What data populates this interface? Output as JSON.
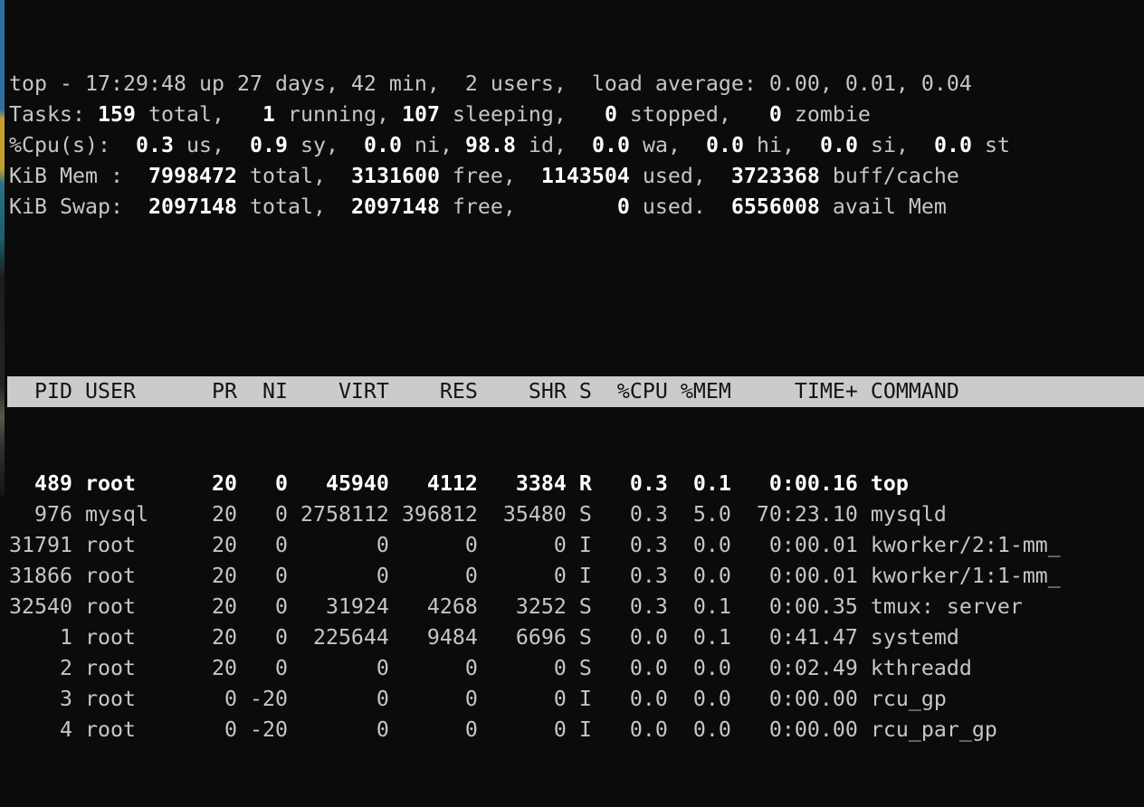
{
  "terminal": {
    "colors": {
      "background": "#0b0b0b",
      "text": "#c6c6c6",
      "bold_text": "#ffffff",
      "header_bg": "#cbcbcb",
      "header_text": "#141414"
    },
    "summary_lines": [
      {
        "name": "uptime-line",
        "segments": [
          {
            "t": "top - 17:29:48 up 27 days, 42 min,  2 users,  load average: 0.00, 0.01, 0.04",
            "b": false
          }
        ]
      },
      {
        "name": "tasks-line",
        "segments": [
          {
            "t": "Tasks: ",
            "b": false
          },
          {
            "t": "159",
            "b": true
          },
          {
            "t": " total,   ",
            "b": false
          },
          {
            "t": "1",
            "b": true
          },
          {
            "t": " running, ",
            "b": false
          },
          {
            "t": "107",
            "b": true
          },
          {
            "t": " sleeping,   ",
            "b": false
          },
          {
            "t": "0",
            "b": true
          },
          {
            "t": " stopped,   ",
            "b": false
          },
          {
            "t": "0",
            "b": true
          },
          {
            "t": " zombie",
            "b": false
          }
        ]
      },
      {
        "name": "cpu-line",
        "segments": [
          {
            "t": "%Cpu(s):  ",
            "b": false
          },
          {
            "t": "0.3",
            "b": true
          },
          {
            "t": " us,  ",
            "b": false
          },
          {
            "t": "0.9",
            "b": true
          },
          {
            "t": " sy,  ",
            "b": false
          },
          {
            "t": "0.0",
            "b": true
          },
          {
            "t": " ni, ",
            "b": false
          },
          {
            "t": "98.8",
            "b": true
          },
          {
            "t": " id,  ",
            "b": false
          },
          {
            "t": "0.0",
            "b": true
          },
          {
            "t": " wa,  ",
            "b": false
          },
          {
            "t": "0.0",
            "b": true
          },
          {
            "t": " hi,  ",
            "b": false
          },
          {
            "t": "0.0",
            "b": true
          },
          {
            "t": " si,  ",
            "b": false
          },
          {
            "t": "0.0",
            "b": true
          },
          {
            "t": " st",
            "b": false
          }
        ]
      },
      {
        "name": "mem-line",
        "segments": [
          {
            "t": "KiB Mem :  ",
            "b": false
          },
          {
            "t": "7998472",
            "b": true
          },
          {
            "t": " total,  ",
            "b": false
          },
          {
            "t": "3131600",
            "b": true
          },
          {
            "t": " free,  ",
            "b": false
          },
          {
            "t": "1143504",
            "b": true
          },
          {
            "t": " used,  ",
            "b": false
          },
          {
            "t": "3723368",
            "b": true
          },
          {
            "t": " buff/cache",
            "b": false
          }
        ]
      },
      {
        "name": "swap-line",
        "segments": [
          {
            "t": "KiB Swap:  ",
            "b": false
          },
          {
            "t": "2097148",
            "b": true
          },
          {
            "t": " total,  ",
            "b": false
          },
          {
            "t": "2097148",
            "b": true
          },
          {
            "t": " free,        ",
            "b": false
          },
          {
            "t": "0",
            "b": true
          },
          {
            "t": " used.  ",
            "b": false
          },
          {
            "t": "6556008",
            "b": true
          },
          {
            "t": " avail Mem",
            "b": false
          }
        ]
      }
    ],
    "table": {
      "columns": [
        {
          "key": "pid",
          "label": "PID",
          "width": 5,
          "align": "right"
        },
        {
          "key": "user",
          "label": "USER",
          "width": 8,
          "align": "left"
        },
        {
          "key": "pr",
          "label": "PR",
          "width": 3,
          "align": "right"
        },
        {
          "key": "ni",
          "label": "NI",
          "width": 3,
          "align": "right"
        },
        {
          "key": "virt",
          "label": "VIRT",
          "width": 7,
          "align": "right"
        },
        {
          "key": "res",
          "label": "RES",
          "width": 6,
          "align": "right"
        },
        {
          "key": "shr",
          "label": "SHR",
          "width": 6,
          "align": "right"
        },
        {
          "key": "s",
          "label": "S",
          "width": 1,
          "align": "left"
        },
        {
          "key": "cpu",
          "label": "%CPU",
          "width": 5,
          "align": "right"
        },
        {
          "key": "mem",
          "label": "%MEM",
          "width": 4,
          "align": "right"
        },
        {
          "key": "time",
          "label": "TIME+",
          "width": 9,
          "align": "right"
        },
        {
          "key": "command",
          "label": "COMMAND",
          "width": 0,
          "align": "left"
        }
      ],
      "rows": [
        {
          "bold": true,
          "cells": {
            "pid": "489",
            "user": "root",
            "pr": "20",
            "ni": "0",
            "virt": "45940",
            "res": "4112",
            "shr": "3384",
            "s": "R",
            "cpu": "0.3",
            "mem": "0.1",
            "time": "0:00.16",
            "command": "top"
          }
        },
        {
          "bold": false,
          "cells": {
            "pid": "976",
            "user": "mysql",
            "pr": "20",
            "ni": "0",
            "virt": "2758112",
            "res": "396812",
            "shr": "35480",
            "s": "S",
            "cpu": "0.3",
            "mem": "5.0",
            "time": "70:23.10",
            "command": "mysqld"
          }
        },
        {
          "bold": false,
          "cells": {
            "pid": "31791",
            "user": "root",
            "pr": "20",
            "ni": "0",
            "virt": "0",
            "res": "0",
            "shr": "0",
            "s": "I",
            "cpu": "0.3",
            "mem": "0.0",
            "time": "0:00.01",
            "command": "kworker/2:1-mm_"
          }
        },
        {
          "bold": false,
          "cells": {
            "pid": "31866",
            "user": "root",
            "pr": "20",
            "ni": "0",
            "virt": "0",
            "res": "0",
            "shr": "0",
            "s": "I",
            "cpu": "0.3",
            "mem": "0.0",
            "time": "0:00.01",
            "command": "kworker/1:1-mm_"
          }
        },
        {
          "bold": false,
          "cells": {
            "pid": "32540",
            "user": "root",
            "pr": "20",
            "ni": "0",
            "virt": "31924",
            "res": "4268",
            "shr": "3252",
            "s": "S",
            "cpu": "0.3",
            "mem": "0.1",
            "time": "0:00.35",
            "command": "tmux: server"
          }
        },
        {
          "bold": false,
          "cells": {
            "pid": "1",
            "user": "root",
            "pr": "20",
            "ni": "0",
            "virt": "225644",
            "res": "9484",
            "shr": "6696",
            "s": "S",
            "cpu": "0.0",
            "mem": "0.1",
            "time": "0:41.47",
            "command": "systemd"
          }
        },
        {
          "bold": false,
          "cells": {
            "pid": "2",
            "user": "root",
            "pr": "20",
            "ni": "0",
            "virt": "0",
            "res": "0",
            "shr": "0",
            "s": "S",
            "cpu": "0.0",
            "mem": "0.0",
            "time": "0:02.49",
            "command": "kthreadd"
          }
        },
        {
          "bold": false,
          "cells": {
            "pid": "3",
            "user": "root",
            "pr": "0",
            "ni": "-20",
            "virt": "0",
            "res": "0",
            "shr": "0",
            "s": "I",
            "cpu": "0.0",
            "mem": "0.0",
            "time": "0:00.00",
            "command": "rcu_gp"
          }
        },
        {
          "bold": false,
          "cells": {
            "pid": "4",
            "user": "root",
            "pr": "0",
            "ni": "-20",
            "virt": "0",
            "res": "0",
            "shr": "0",
            "s": "I",
            "cpu": "0.0",
            "mem": "0.0",
            "time": "0:00.00",
            "command": "rcu_par_gp"
          }
        }
      ]
    }
  },
  "wallpaper_strip": {
    "stops": [
      {
        "c": "#2f6e9e",
        "p": 0
      },
      {
        "c": "#2f6e9e",
        "p": 22
      },
      {
        "c": "#c3a02f",
        "p": 24
      },
      {
        "c": "#c3a02f",
        "p": 34
      },
      {
        "c": "#2b7183",
        "p": 37
      },
      {
        "c": "#1d5f6e",
        "p": 48
      },
      {
        "c": "#1c1c1c",
        "p": 56
      },
      {
        "c": "#242420",
        "p": 78
      },
      {
        "c": "#59594f",
        "p": 84
      },
      {
        "c": "#31312d",
        "p": 90
      },
      {
        "c": "#141414",
        "p": 100
      }
    ]
  }
}
